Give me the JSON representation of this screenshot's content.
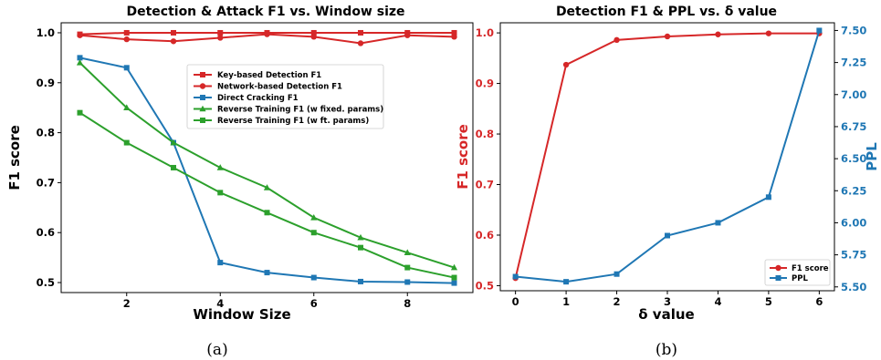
{
  "chart_data": [
    {
      "type": "line",
      "title": "Detection & Attack F1 vs. Window size",
      "xlabel": "Window Size",
      "ylabel": "F1 score",
      "xlim": [
        0.6,
        9.4
      ],
      "ylim": [
        0.48,
        1.02
      ],
      "xticks": [
        2,
        4,
        6,
        8
      ],
      "yticks": [
        0.5,
        0.6,
        0.7,
        0.8,
        0.9,
        1.0
      ],
      "x": [
        1,
        2,
        3,
        4,
        5,
        6,
        7,
        8,
        9
      ],
      "legend_position": "upper-center-right",
      "grid": false,
      "series": [
        {
          "name": "Key-based Detection F1",
          "color": "#d62728",
          "marker": "square",
          "values": [
            0.997,
            1.0,
            1.0,
            1.0,
            1.0,
            1.0,
            1.0,
            1.0,
            1.0
          ]
        },
        {
          "name": "Network-based Detection F1",
          "color": "#d62728",
          "marker": "circle",
          "values": [
            0.995,
            0.987,
            0.983,
            0.99,
            0.997,
            0.992,
            0.979,
            0.995,
            0.992
          ]
        },
        {
          "name": "Direct Cracking F1",
          "color": "#1f77b4",
          "marker": "square",
          "values": [
            0.95,
            0.93,
            0.78,
            0.54,
            0.52,
            0.51,
            0.502,
            0.501,
            0.499
          ]
        },
        {
          "name": "Reverse Training F1 (w fixed. params)",
          "color": "#2ca02c",
          "marker": "triangle",
          "values": [
            0.94,
            0.85,
            0.78,
            0.73,
            0.69,
            0.63,
            0.59,
            0.56,
            0.53
          ]
        },
        {
          "name": "Reverse Training F1 (w ft. params)",
          "color": "#2ca02c",
          "marker": "square",
          "values": [
            0.84,
            0.78,
            0.73,
            0.68,
            0.64,
            0.6,
            0.57,
            0.53,
            0.51
          ]
        }
      ],
      "caption": "(a)"
    },
    {
      "type": "line",
      "title": "Detection F1 & PPL vs. δ value",
      "xlabel": "δ value",
      "ylabel": "F1 score",
      "ylabel_right": "PPL",
      "xlim": [
        -0.3,
        6.3
      ],
      "ylim": [
        0.49,
        1.02
      ],
      "ylim_right": [
        5.47,
        7.56
      ],
      "xticks": [
        0,
        1,
        2,
        3,
        4,
        5,
        6
      ],
      "yticks": [
        0.5,
        0.6,
        0.7,
        0.8,
        0.9,
        1.0
      ],
      "yticks_right": [
        5.5,
        5.75,
        6.0,
        6.25,
        6.5,
        6.75,
        7.0,
        7.25,
        7.5
      ],
      "x": [
        0,
        1,
        2,
        3,
        4,
        5,
        6
      ],
      "legend_position": "lower-right",
      "grid": false,
      "series": [
        {
          "name": "F1 score",
          "color": "#d62728",
          "marker": "circle",
          "axis": "left",
          "values": [
            0.515,
            0.937,
            0.986,
            0.993,
            0.997,
            0.999,
            0.999
          ]
        },
        {
          "name": "PPL",
          "color": "#1f77b4",
          "marker": "square",
          "axis": "right",
          "values": [
            5.58,
            5.54,
            5.6,
            5.9,
            6.0,
            6.2,
            7.5
          ]
        }
      ],
      "caption": "(b)"
    }
  ]
}
